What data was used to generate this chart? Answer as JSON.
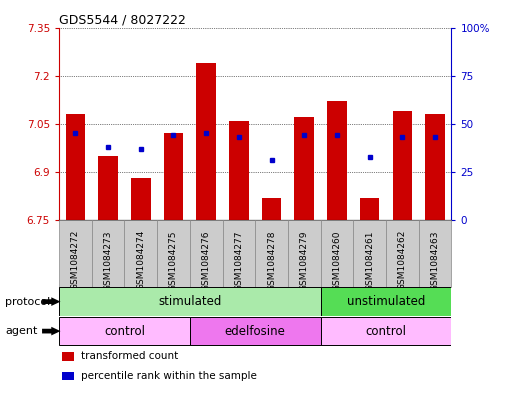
{
  "title": "GDS5544 / 8027222",
  "samples": [
    "GSM1084272",
    "GSM1084273",
    "GSM1084274",
    "GSM1084275",
    "GSM1084276",
    "GSM1084277",
    "GSM1084278",
    "GSM1084279",
    "GSM1084260",
    "GSM1084261",
    "GSM1084262",
    "GSM1084263"
  ],
  "transformed_count": [
    7.08,
    6.95,
    6.88,
    7.02,
    7.24,
    7.06,
    6.82,
    7.07,
    7.12,
    6.82,
    7.09,
    7.08
  ],
  "percentile_rank": [
    45,
    38,
    37,
    44,
    45,
    43,
    31,
    44,
    44,
    33,
    43,
    43
  ],
  "y_min": 6.75,
  "y_max": 7.35,
  "y_ticks": [
    6.75,
    6.9,
    7.05,
    7.2,
    7.35
  ],
  "y_tick_labels": [
    "6.75",
    "6.9",
    "7.05",
    "7.2",
    "7.35"
  ],
  "right_y_ticks": [
    0,
    25,
    50,
    75,
    100
  ],
  "right_y_tick_labels": [
    "0",
    "25",
    "50",
    "75",
    "100%"
  ],
  "bar_color": "#cc0000",
  "dot_color": "#0000cc",
  "bar_width": 0.6,
  "protocol_groups": [
    {
      "label": "stimulated",
      "start": 0,
      "end": 8,
      "color": "#aaeaaa"
    },
    {
      "label": "unstimulated",
      "start": 8,
      "end": 12,
      "color": "#55dd55"
    }
  ],
  "agent_groups": [
    {
      "label": "control",
      "start": 0,
      "end": 4,
      "color": "#ffbbff"
    },
    {
      "label": "edelfosine",
      "start": 4,
      "end": 8,
      "color": "#ee77ee"
    },
    {
      "label": "control",
      "start": 8,
      "end": 12,
      "color": "#ffbbff"
    }
  ],
  "legend_items": [
    {
      "label": "transformed count",
      "color": "#cc0000"
    },
    {
      "label": "percentile rank within the sample",
      "color": "#0000cc"
    }
  ],
  "bg_color": "#ffffff",
  "plot_bg_color": "#ffffff",
  "grid_color": "#000000",
  "axis_label_color_left": "#cc0000",
  "axis_label_color_right": "#0000cc",
  "label_row1": "protocol",
  "label_row2": "agent",
  "sample_box_color": "#cccccc",
  "sample_box_edge": "#888888"
}
